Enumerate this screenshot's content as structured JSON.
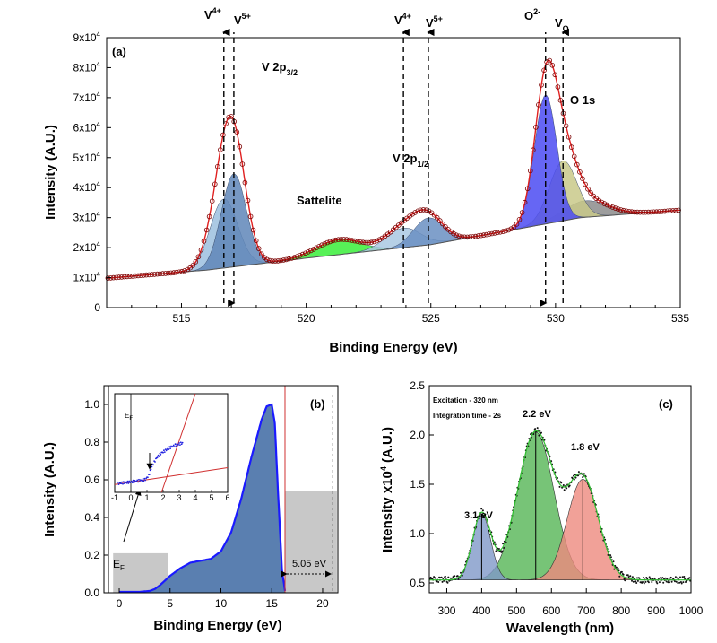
{
  "chart_data": [
    {
      "panel": "a",
      "type": "line",
      "panel_label": "(a)",
      "xlabel": "Binding Energy (eV)",
      "ylabel": "Intensity (A.U.)",
      "xlim": [
        512,
        535
      ],
      "ylim": [
        0,
        90000
      ],
      "xticks": [
        515,
        520,
        525,
        530,
        535
      ],
      "yticks": [
        {
          "value": 0,
          "label": "0"
        },
        {
          "value": 10000,
          "label": "1x10",
          "exp": "4"
        },
        {
          "value": 20000,
          "label": "2x10",
          "exp": "4"
        },
        {
          "value": 30000,
          "label": "3x10",
          "exp": "4"
        },
        {
          "value": 40000,
          "label": "4x10",
          "exp": "4"
        },
        {
          "value": 50000,
          "label": "5x10",
          "exp": "4"
        },
        {
          "value": 60000,
          "label": "6x10",
          "exp": "4"
        },
        {
          "value": 70000,
          "label": "7x10",
          "exp": "4"
        },
        {
          "value": 80000,
          "label": "8x10",
          "exp": "4"
        },
        {
          "value": 90000,
          "label": "9x10",
          "exp": "4"
        }
      ],
      "background": {
        "x": [
          512,
          516,
          520,
          525,
          528,
          531,
          535
        ],
        "y": [
          9800,
          12500,
          16500,
          21000,
          25500,
          30000,
          32500
        ]
      },
      "peaks": [
        {
          "name": "V4+ 2p3/2",
          "center": 516.7,
          "height": 23000,
          "sigma": 0.55,
          "color": "#9cbfdf"
        },
        {
          "name": "V5+ 2p3/2",
          "center": 517.1,
          "height": 31000,
          "sigma": 0.5,
          "color": "#5f86b8"
        },
        {
          "name": "Sattelite",
          "center": 521.3,
          "height": 5000,
          "sigma": 0.9,
          "color": "#39ef39"
        },
        {
          "name": "V4+ 2p1/2",
          "center": 523.9,
          "height": 6500,
          "sigma": 0.7,
          "color": "#a9c8e2"
        },
        {
          "name": "V5+ 2p1/2",
          "center": 524.9,
          "height": 9000,
          "sigma": 0.6,
          "color": "#6a8fc2"
        },
        {
          "name": "O2-",
          "center": 529.6,
          "height": 43000,
          "sigma": 0.45,
          "color": "#4b4bf2"
        },
        {
          "name": "VO",
          "center": 530.3,
          "height": 20000,
          "sigma": 0.55,
          "color": "#c9c98a"
        },
        {
          "name": "O 1s tail",
          "center": 531.2,
          "height": 5500,
          "sigma": 0.9,
          "color": "#8c8c8c"
        }
      ],
      "annotations": [
        {
          "text": "V",
          "sup": "4+",
          "x": 516.7,
          "line_dir": "up"
        },
        {
          "text": "V",
          "sup": "5+",
          "x": 517.1,
          "line_dir": "down"
        },
        {
          "text": "V",
          "sup": "4+",
          "x": 523.9,
          "line_dir": "up"
        },
        {
          "text": "V",
          "sup": "5+",
          "x": 524.9,
          "line_dir": "up"
        },
        {
          "text": "O",
          "sup": "2-",
          "x": 529.6,
          "line_dir": "down"
        },
        {
          "text": "V",
          "sub": "O",
          "x": 530.3,
          "line_dir": "up"
        }
      ],
      "labels": {
        "v2p32": "V 2p",
        "v2p32_sub": "3/2",
        "v2p12": "V 2p",
        "v2p12_sub": "1/2",
        "sattelite": "Sattelite",
        "o1s": "O 1s"
      }
    },
    {
      "panel": "b",
      "type": "area",
      "panel_label": "(b)",
      "xlabel": "Binding Energy (eV)",
      "ylabel": "Intensity (A.U.)",
      "xlim": [
        -1.5,
        21.5
      ],
      "ylim": [
        0,
        1.1
      ],
      "xticks": [
        0,
        5,
        10,
        15,
        20
      ],
      "yticks": [
        0.0,
        0.2,
        0.4,
        0.6,
        0.8,
        1.0
      ],
      "x": [
        0,
        1,
        2,
        3,
        3.5,
        4,
        5,
        6,
        7,
        8,
        9,
        10,
        11,
        12,
        13,
        14,
        14.5,
        15,
        15.3,
        15.6,
        16,
        16.3
      ],
      "y": [
        0.005,
        0.005,
        0.005,
        0.01,
        0.02,
        0.04,
        0.09,
        0.13,
        0.16,
        0.17,
        0.18,
        0.22,
        0.32,
        0.5,
        0.72,
        0.92,
        0.99,
        1.0,
        0.9,
        0.55,
        0.12,
        0.01
      ],
      "ef_label": "E",
      "ef_sub": "F",
      "ef_box": {
        "x0": -0.6,
        "x1": 4.8,
        "y1": 0.21
      },
      "work_box": {
        "x0": 16.3,
        "x1": 21.4,
        "y1": 0.54
      },
      "cutoff_x": 16.3,
      "dashed_x": 21.0,
      "annotation": "5.05 eV",
      "inset": {
        "xlim": [
          -1,
          6
        ],
        "ylim": [
          0,
          1
        ],
        "xticks": [
          -1,
          0,
          1,
          2,
          3,
          4,
          5,
          6
        ],
        "ef_label": "E",
        "ef_sub": "F",
        "x": [
          -0.8,
          -0.3,
          0.2,
          0.6,
          0.9,
          1.1,
          1.3,
          1.6,
          1.9,
          2.2,
          2.5,
          2.8,
          3.0,
          3.2
        ],
        "y": [
          0.09,
          0.1,
          0.11,
          0.12,
          0.13,
          0.17,
          0.26,
          0.35,
          0.4,
          0.43,
          0.46,
          0.48,
          0.49,
          0.5
        ],
        "fit1": {
          "x": [
            -1,
            6
          ],
          "y": [
            0.08,
            0.25
          ]
        },
        "fit2": {
          "x": [
            1.9,
            4.0
          ],
          "y": [
            0.0,
            1.0
          ]
        }
      }
    },
    {
      "panel": "c",
      "type": "line",
      "panel_label": "(c)",
      "xlabel": "Wavelength (nm)",
      "ylabel": "Intensity x10",
      "ylabel_sup": "4",
      "ylabel_unit": "(A.U.)",
      "xlim": [
        250,
        1000
      ],
      "ylim": [
        0.4,
        2.5
      ],
      "xticks": [
        300,
        400,
        500,
        600,
        700,
        800,
        900,
        1000
      ],
      "yticks": [
        0.5,
        1.0,
        1.5,
        2.0,
        2.5
      ],
      "baseline": 0.53,
      "peaks": [
        {
          "name": "3.1 eV",
          "center": 400,
          "height": 0.67,
          "sigma": 26,
          "color": "#7f99c8"
        },
        {
          "name": "2.2 eV",
          "center": 555,
          "height": 1.5,
          "sigma": 52,
          "color": "#55b555"
        },
        {
          "name": "1.8 eV",
          "center": 690,
          "height": 1.02,
          "sigma": 45,
          "color": "#ee8a7e"
        }
      ],
      "annotations": [
        "Excitation - 320 nm",
        "Integration time - 2s"
      ],
      "peak_labels": [
        "3.1 eV",
        "2.2 eV",
        "1.8 eV"
      ]
    }
  ]
}
